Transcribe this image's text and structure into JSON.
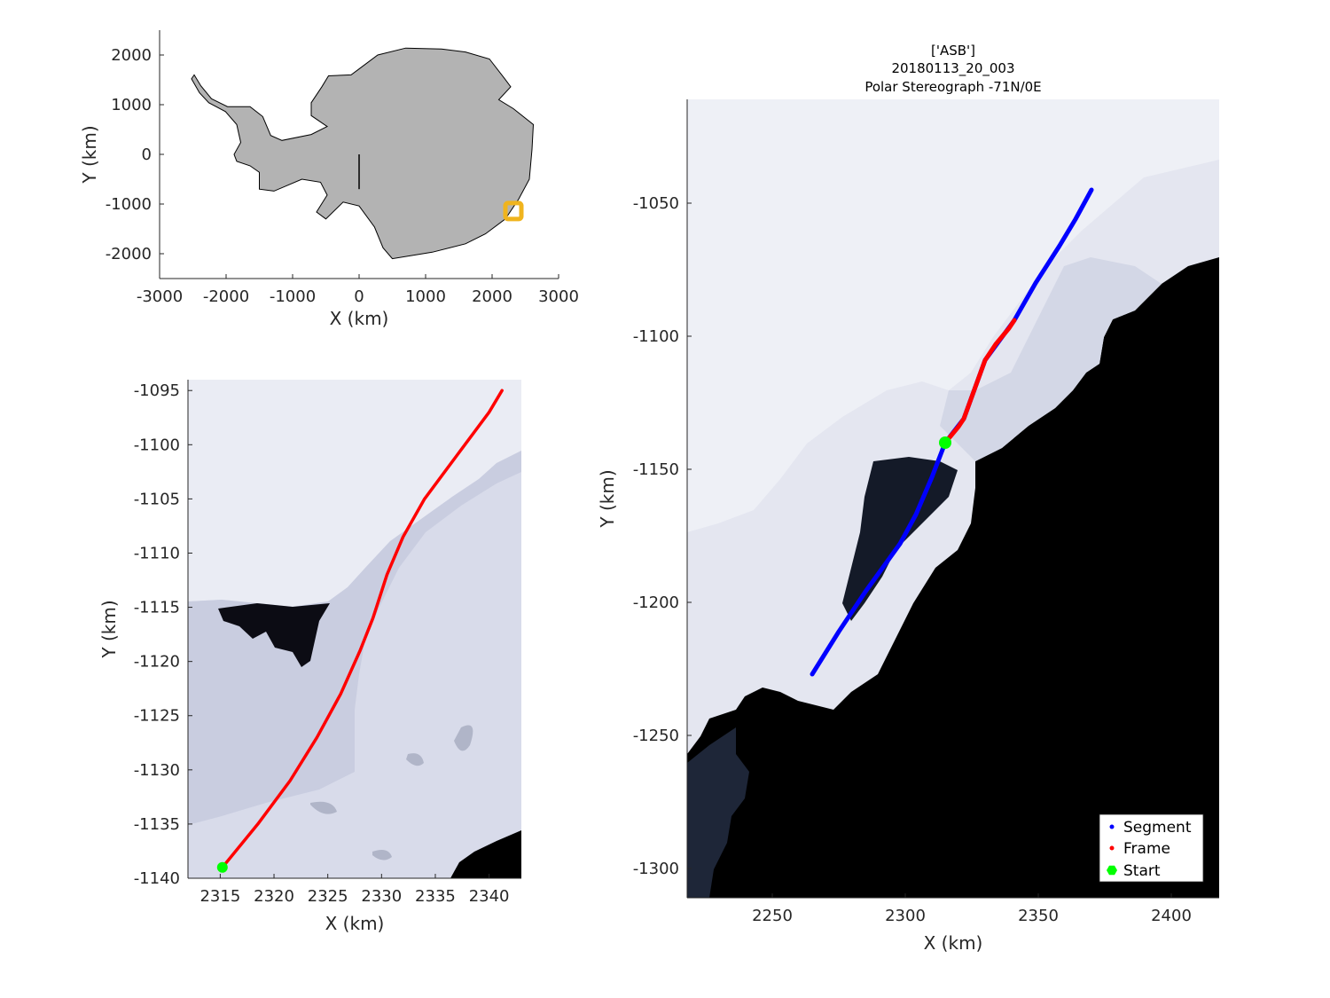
{
  "figure_title": {
    "line1": "['ASB']",
    "line2": "20180113_20_003",
    "line3": "Polar Stereograph -71N/0E"
  },
  "colors": {
    "continent_fill": "#b3b3b3",
    "segment": "#0000ff",
    "frame": "#ff0000",
    "start": "#00ff00",
    "locator_box": "#f0b41e",
    "ocean": "#000000",
    "ice": "#e6e8f2"
  },
  "chart_data": [
    {
      "type": "map",
      "name_hint": "overview",
      "xlabel": "X (km)",
      "ylabel": "Y (km)",
      "xlim": [
        -3000,
        3000
      ],
      "ylim": [
        -2500,
        2500
      ],
      "xticks": [
        "-3000",
        "-2000",
        "-1000",
        "0",
        "1000",
        "2000",
        "3000"
      ],
      "xtick_values": [
        -3000,
        -2000,
        -1000,
        0,
        1000,
        2000,
        3000
      ],
      "yticks": [
        "2000",
        "1000",
        "0",
        "-1000",
        "-2000"
      ],
      "ytick_values": [
        2000,
        1000,
        0,
        -1000,
        -2000
      ],
      "locator_box_center": [
        2320,
        -1140
      ],
      "outline_km": [
        [
          -2480,
          1600
        ],
        [
          -2380,
          1380
        ],
        [
          -2220,
          1120
        ],
        [
          -1980,
          960
        ],
        [
          -1640,
          960
        ],
        [
          -1450,
          760
        ],
        [
          -1330,
          380
        ],
        [
          -1160,
          280
        ],
        [
          -720,
          400
        ],
        [
          -480,
          560
        ],
        [
          -720,
          780
        ],
        [
          -720,
          1040
        ],
        [
          -560,
          1360
        ],
        [
          -460,
          1580
        ],
        [
          -120,
          1600
        ],
        [
          0,
          1720
        ],
        [
          280,
          2000
        ],
        [
          700,
          2140
        ],
        [
          1240,
          2120
        ],
        [
          1600,
          2060
        ],
        [
          1960,
          1920
        ],
        [
          2180,
          1540
        ],
        [
          2280,
          1360
        ],
        [
          2100,
          1100
        ],
        [
          2320,
          920
        ],
        [
          2620,
          600
        ],
        [
          2600,
          100
        ],
        [
          2560,
          -500
        ],
        [
          2400,
          -900
        ],
        [
          2200,
          -1300
        ],
        [
          1900,
          -1600
        ],
        [
          1600,
          -1800
        ],
        [
          1100,
          -1970
        ],
        [
          500,
          -2100
        ],
        [
          360,
          -1880
        ],
        [
          230,
          -1460
        ],
        [
          0,
          -1040
        ],
        [
          -240,
          -960
        ],
        [
          -500,
          -1300
        ],
        [
          -640,
          -1160
        ],
        [
          -480,
          -820
        ],
        [
          -580,
          -560
        ],
        [
          -860,
          -500
        ],
        [
          -1280,
          -740
        ],
        [
          -1500,
          -700
        ],
        [
          -1500,
          -360
        ],
        [
          -1640,
          -230
        ],
        [
          -1840,
          -140
        ],
        [
          -1880,
          0
        ],
        [
          -1780,
          240
        ],
        [
          -1840,
          600
        ],
        [
          -2010,
          860
        ],
        [
          -2260,
          1040
        ],
        [
          -2400,
          1240
        ],
        [
          -2520,
          1520
        ],
        [
          -2480,
          1600
        ]
      ]
    },
    {
      "type": "line",
      "name_hint": "frame-detail",
      "xlabel": "X (km)",
      "ylabel": "Y (km)",
      "xlim": [
        2312,
        2343
      ],
      "ylim": [
        -1140,
        -1094
      ],
      "xticks": [
        "2315",
        "2320",
        "2325",
        "2330",
        "2335",
        "2340"
      ],
      "xtick_values": [
        2315,
        2320,
        2325,
        2330,
        2335,
        2340
      ],
      "yticks": [
        "-1095",
        "-1100",
        "-1105",
        "-1110",
        "-1115",
        "-1120",
        "-1125",
        "-1130",
        "-1135",
        "-1140"
      ],
      "ytick_values": [
        -1095,
        -1100,
        -1105,
        -1110,
        -1115,
        -1120,
        -1125,
        -1130,
        -1135,
        -1140
      ],
      "frame_track": [
        [
          2315.2,
          -1139
        ],
        [
          2318.5,
          -1135
        ],
        [
          2321.5,
          -1131
        ],
        [
          2324,
          -1127
        ],
        [
          2326.2,
          -1123
        ],
        [
          2328,
          -1119
        ],
        [
          2329.2,
          -1116
        ],
        [
          2330.5,
          -1112
        ],
        [
          2332,
          -1108.5
        ],
        [
          2334,
          -1105
        ],
        [
          2337,
          -1101
        ],
        [
          2340,
          -1097
        ],
        [
          2341.2,
          -1095
        ]
      ],
      "start": [
        2315.2,
        -1139
      ]
    },
    {
      "type": "line",
      "name_hint": "segment-map",
      "xlabel": "X (km)",
      "ylabel": "Y (km)",
      "xlim": [
        2218,
        2418
      ],
      "ylim": [
        -1311,
        -1011
      ],
      "xticks": [
        "2250",
        "2300",
        "2350",
        "2400"
      ],
      "xtick_values": [
        2250,
        2300,
        2350,
        2400
      ],
      "yticks": [
        "-1050",
        "-1100",
        "-1150",
        "-1200",
        "-1250",
        "-1300"
      ],
      "ytick_values": [
        -1050,
        -1100,
        -1150,
        -1200,
        -1250,
        -1300
      ],
      "segment_track": [
        [
          2265,
          -1227
        ],
        [
          2275,
          -1211
        ],
        [
          2285,
          -1196
        ],
        [
          2298,
          -1178
        ],
        [
          2304,
          -1167
        ],
        [
          2310,
          -1153
        ],
        [
          2315,
          -1140
        ],
        [
          2322,
          -1131
        ],
        [
          2330,
          -1109
        ],
        [
          2341,
          -1094
        ],
        [
          2349,
          -1080
        ],
        [
          2358,
          -1066
        ],
        [
          2364,
          -1056
        ],
        [
          2370,
          -1045
        ]
      ],
      "frame_track": [
        [
          2315,
          -1140
        ],
        [
          2320,
          -1134
        ],
        [
          2322,
          -1131
        ],
        [
          2326,
          -1120
        ],
        [
          2330,
          -1109
        ],
        [
          2334,
          -1103
        ],
        [
          2339,
          -1097
        ],
        [
          2341,
          -1094
        ]
      ],
      "start": [
        2315,
        -1140
      ],
      "legend": {
        "position": "bottom-right",
        "entries": [
          {
            "label": "Segment",
            "color": "#0000ff",
            "marker": "dot"
          },
          {
            "label": "Frame",
            "color": "#ff0000",
            "marker": "dot"
          },
          {
            "label": "Start",
            "color": "#00ff00",
            "marker": "hexagon"
          }
        ]
      }
    }
  ]
}
